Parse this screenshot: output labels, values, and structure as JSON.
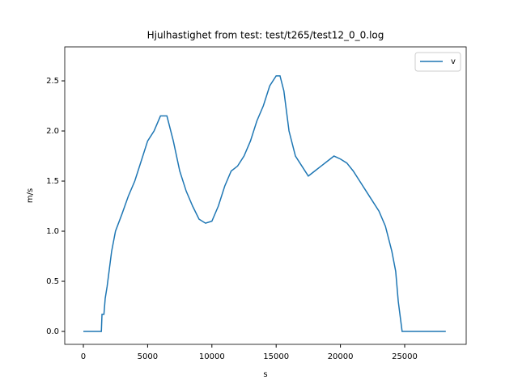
{
  "chart_data": {
    "type": "line",
    "title": "Hjulhastighet from test: test/t265/test12_0_0.log",
    "x_label": "s",
    "y_label": "m/s",
    "x": [
      0,
      1400,
      1450,
      1600,
      1700,
      1850,
      2000,
      2200,
      2500,
      3000,
      3500,
      4000,
      4500,
      5000,
      5500,
      6000,
      6500,
      7000,
      7500,
      8000,
      8500,
      9000,
      9500,
      10000,
      10500,
      11000,
      11500,
      12000,
      12500,
      13000,
      13500,
      14000,
      14500,
      15000,
      15300,
      15600,
      16000,
      16500,
      17000,
      17500,
      18000,
      18500,
      19000,
      19500,
      20000,
      20500,
      21000,
      21500,
      22000,
      22500,
      23000,
      23500,
      24000,
      24300,
      24500,
      24700,
      24800,
      28200
    ],
    "series": [
      {
        "name": "v",
        "color": "#1f77b4",
        "values": [
          0,
          0,
          0.17,
          0.17,
          0.33,
          0.45,
          0.6,
          0.8,
          1.0,
          1.17,
          1.35,
          1.5,
          1.7,
          1.9,
          2.0,
          2.15,
          2.15,
          1.9,
          1.6,
          1.4,
          1.25,
          1.12,
          1.08,
          1.1,
          1.25,
          1.45,
          1.6,
          1.65,
          1.75,
          1.9,
          2.1,
          2.25,
          2.45,
          2.55,
          2.55,
          2.4,
          2.0,
          1.75,
          1.65,
          1.55,
          1.6,
          1.65,
          1.7,
          1.75,
          1.72,
          1.68,
          1.6,
          1.5,
          1.4,
          1.3,
          1.2,
          1.05,
          0.8,
          0.6,
          0.3,
          0.1,
          0,
          0
        ]
      }
    ],
    "xlim": [
      -1448,
      29786
    ],
    "ylim": [
      -0.129,
      2.839
    ],
    "xticks": [
      0,
      5000,
      10000,
      15000,
      20000,
      25000
    ],
    "yticks": [
      {
        "value": 0,
        "label": "0.0"
      },
      {
        "value": 0.5,
        "label": "0.5"
      },
      {
        "value": 1,
        "label": "1.0"
      },
      {
        "value": 1.5,
        "label": "1.5"
      },
      {
        "value": 2,
        "label": "2.0"
      },
      {
        "value": 2.5,
        "label": "2.5"
      }
    ],
    "legend": "upper right",
    "grid": false
  }
}
